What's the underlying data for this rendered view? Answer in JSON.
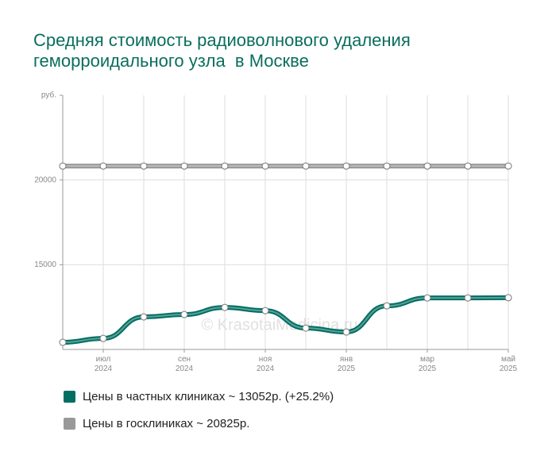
{
  "chart_data": {
    "type": "line",
    "title": "Средняя стоимость радиоволнового удаления геморроидального узла  в Москве",
    "watermark": "© KrasotaiMedicina.ru",
    "categories": [
      null,
      "июл 2024",
      null,
      "сен 2024",
      null,
      "ноя 2024",
      null,
      "янв 2025",
      null,
      "мар 2025",
      null,
      "май 2025"
    ],
    "series": [
      {
        "name": "Цены в частных клиниках ~ 13052р. (+25.2%)",
        "color": "#006e62",
        "values": [
          10420,
          10650,
          11920,
          12060,
          12480,
          12290,
          11260,
          11030,
          12570,
          13040,
          13040,
          13052
        ]
      },
      {
        "name": "Цены в госклиниках ~ 20825р.",
        "color": "#999999",
        "values": [
          20825,
          20825,
          20825,
          20825,
          20825,
          20825,
          20825,
          20825,
          20825,
          20825,
          20825,
          20825
        ]
      }
    ],
    "ylim": [
      10000,
      25000
    ],
    "yticks": [
      15000,
      20000,
      {
        "value": 25000,
        "label": "руб."
      }
    ],
    "grid": true
  }
}
